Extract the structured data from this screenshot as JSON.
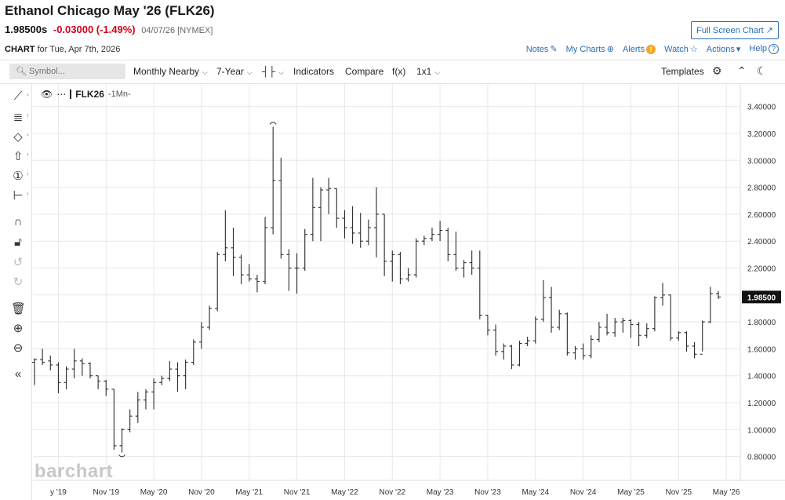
{
  "header": {
    "title": "Ethanol Chicago May '26 (FLK26)",
    "last": "1.98500s",
    "change": "-0.03000 (-1.49%)",
    "meta": "04/07/26 [NYMEX]",
    "fullscreen_label": "Full Screen Chart ↗",
    "chart_label": "CHART",
    "chart_date": "for Tue, Apr 7th, 2026"
  },
  "links": {
    "notes": "Notes",
    "mycharts": "My Charts",
    "alerts": "Alerts",
    "watch": "Watch",
    "actions": "Actions",
    "help": "Help"
  },
  "toolbar": {
    "search_placeholder": "Symbol...",
    "period": "Monthly Nearby",
    "range": "7-Year",
    "indicators": "Indicators",
    "compare": "Compare",
    "fx": "f(x)",
    "layout": "1x1",
    "templates": "Templates"
  },
  "legend": {
    "symbol": "FLK26",
    "period": "-1Mn-"
  },
  "watermark": "barchart",
  "colors": {
    "bar": "#2b2b2b",
    "grid": "#e8e8e8",
    "accent": "#2a6db5",
    "down": "#d0021b",
    "alert": "#f5a623"
  },
  "chart_data": {
    "type": "ohlc",
    "title": "Ethanol Chicago May '26 (FLK26)",
    "y_axis_position": "right",
    "ylim": [
      0.7,
      3.5
    ],
    "y_ticks": [
      "3.40000",
      "3.20000",
      "3.00000",
      "2.80000",
      "2.60000",
      "2.40000",
      "2.20000",
      "2.00000",
      "1.80000",
      "1.60000",
      "1.40000",
      "1.20000",
      "1.00000",
      "0.80000"
    ],
    "x_tick_labels": [
      "y '19",
      "Nov '19",
      "May '20",
      "Nov '20",
      "May '21",
      "Nov '21",
      "May '22",
      "Nov '22",
      "May '23",
      "Nov '23",
      "May '24",
      "Nov '24",
      "May '25",
      "Nov '25",
      "May '26"
    ],
    "last_price_label": "1.98500",
    "last_price": 1.985,
    "bars": [
      {
        "open": 1.5,
        "high": 1.53,
        "low": 1.33,
        "close": 1.52
      },
      {
        "open": 1.52,
        "high": 1.6,
        "low": 1.48,
        "close": 1.5
      },
      {
        "open": 1.51,
        "high": 1.55,
        "low": 1.44,
        "close": 1.48
      },
      {
        "open": 1.48,
        "high": 1.5,
        "low": 1.27,
        "close": 1.35
      },
      {
        "open": 1.35,
        "high": 1.47,
        "low": 1.3,
        "close": 1.45
      },
      {
        "open": 1.45,
        "high": 1.6,
        "low": 1.38,
        "close": 1.51
      },
      {
        "open": 1.51,
        "high": 1.53,
        "low": 1.4,
        "close": 1.49
      },
      {
        "open": 1.49,
        "high": 1.5,
        "low": 1.38,
        "close": 1.4
      },
      {
        "open": 1.4,
        "high": 1.4,
        "low": 1.3,
        "close": 1.36
      },
      {
        "open": 1.36,
        "high": 1.37,
        "low": 1.25,
        "close": 1.3
      },
      {
        "open": 1.3,
        "high": 1.3,
        "low": 0.85,
        "close": 0.88
      },
      {
        "open": 0.88,
        "high": 1.01,
        "low": 0.83,
        "close": 1.0
      },
      {
        "open": 1.0,
        "high": 1.15,
        "low": 0.98,
        "close": 1.1
      },
      {
        "open": 1.1,
        "high": 1.28,
        "low": 1.05,
        "close": 1.22
      },
      {
        "open": 1.22,
        "high": 1.3,
        "low": 1.15,
        "close": 1.28
      },
      {
        "open": 1.28,
        "high": 1.38,
        "low": 1.15,
        "close": 1.35
      },
      {
        "open": 1.35,
        "high": 1.4,
        "low": 1.33,
        "close": 1.38
      },
      {
        "open": 1.38,
        "high": 1.51,
        "low": 1.36,
        "close": 1.45
      },
      {
        "open": 1.45,
        "high": 1.5,
        "low": 1.28,
        "close": 1.4
      },
      {
        "open": 1.4,
        "high": 1.52,
        "low": 1.3,
        "close": 1.5
      },
      {
        "open": 1.5,
        "high": 1.67,
        "low": 1.48,
        "close": 1.65
      },
      {
        "open": 1.65,
        "high": 1.8,
        "low": 1.6,
        "close": 1.76
      },
      {
        "open": 1.76,
        "high": 1.92,
        "low": 1.74,
        "close": 1.9
      },
      {
        "open": 1.9,
        "high": 2.32,
        "low": 1.88,
        "close": 2.3
      },
      {
        "open": 2.3,
        "high": 2.63,
        "low": 2.25,
        "close": 2.35
      },
      {
        "open": 2.35,
        "high": 2.5,
        "low": 2.14,
        "close": 2.28
      },
      {
        "open": 2.28,
        "high": 2.3,
        "low": 2.08,
        "close": 2.15
      },
      {
        "open": 2.15,
        "high": 2.23,
        "low": 2.1,
        "close": 2.12
      },
      {
        "open": 2.12,
        "high": 2.15,
        "low": 2.02,
        "close": 2.1
      },
      {
        "open": 2.1,
        "high": 2.58,
        "low": 2.08,
        "close": 2.5
      },
      {
        "open": 2.5,
        "high": 3.25,
        "low": 2.45,
        "close": 2.85
      },
      {
        "open": 2.85,
        "high": 3.02,
        "low": 2.27,
        "close": 2.3
      },
      {
        "open": 2.3,
        "high": 2.34,
        "low": 2.03,
        "close": 2.2
      },
      {
        "open": 2.2,
        "high": 2.31,
        "low": 2.01,
        "close": 2.2
      },
      {
        "open": 2.2,
        "high": 2.49,
        "low": 2.18,
        "close": 2.45
      },
      {
        "open": 2.45,
        "high": 2.87,
        "low": 2.4,
        "close": 2.65
      },
      {
        "open": 2.65,
        "high": 2.8,
        "low": 2.4,
        "close": 2.78
      },
      {
        "open": 2.78,
        "high": 2.87,
        "low": 2.6,
        "close": 2.79
      },
      {
        "open": 2.79,
        "high": 2.79,
        "low": 2.5,
        "close": 2.57
      },
      {
        "open": 2.57,
        "high": 2.63,
        "low": 2.42,
        "close": 2.5
      },
      {
        "open": 2.5,
        "high": 2.66,
        "low": 2.38,
        "close": 2.46
      },
      {
        "open": 2.46,
        "high": 2.61,
        "low": 2.35,
        "close": 2.4
      },
      {
        "open": 2.4,
        "high": 2.56,
        "low": 2.37,
        "close": 2.5
      },
      {
        "open": 2.5,
        "high": 2.8,
        "low": 2.28,
        "close": 2.6
      },
      {
        "open": 2.6,
        "high": 2.6,
        "low": 2.14,
        "close": 2.25
      },
      {
        "open": 2.25,
        "high": 2.33,
        "low": 2.1,
        "close": 2.3
      },
      {
        "open": 2.3,
        "high": 2.32,
        "low": 2.08,
        "close": 2.12
      },
      {
        "open": 2.12,
        "high": 2.2,
        "low": 2.1,
        "close": 2.15
      },
      {
        "open": 2.15,
        "high": 2.42,
        "low": 2.13,
        "close": 2.4
      },
      {
        "open": 2.4,
        "high": 2.44,
        "low": 2.37,
        "close": 2.42
      },
      {
        "open": 2.42,
        "high": 2.5,
        "low": 2.4,
        "close": 2.45
      },
      {
        "open": 2.45,
        "high": 2.55,
        "low": 2.4,
        "close": 2.48
      },
      {
        "open": 2.48,
        "high": 2.5,
        "low": 2.25,
        "close": 2.3
      },
      {
        "open": 2.3,
        "high": 2.47,
        "low": 2.18,
        "close": 2.2
      },
      {
        "open": 2.2,
        "high": 2.26,
        "low": 2.13,
        "close": 2.24
      },
      {
        "open": 2.24,
        "high": 2.33,
        "low": 2.15,
        "close": 2.2
      },
      {
        "open": 2.2,
        "high": 2.33,
        "low": 1.82,
        "close": 1.85
      },
      {
        "open": 1.85,
        "high": 1.85,
        "low": 1.7,
        "close": 1.74
      },
      {
        "open": 1.74,
        "high": 1.78,
        "low": 1.55,
        "close": 1.58
      },
      {
        "open": 1.58,
        "high": 1.64,
        "low": 1.52,
        "close": 1.62
      },
      {
        "open": 1.62,
        "high": 1.63,
        "low": 1.45,
        "close": 1.48
      },
      {
        "open": 1.48,
        "high": 1.66,
        "low": 1.47,
        "close": 1.64
      },
      {
        "open": 1.64,
        "high": 1.69,
        "low": 1.62,
        "close": 1.66
      },
      {
        "open": 1.66,
        "high": 1.84,
        "low": 1.64,
        "close": 1.82
      },
      {
        "open": 1.82,
        "high": 2.11,
        "low": 1.8,
        "close": 1.98
      },
      {
        "open": 1.98,
        "high": 2.06,
        "low": 1.72,
        "close": 1.76
      },
      {
        "open": 1.76,
        "high": 1.89,
        "low": 1.74,
        "close": 1.86
      },
      {
        "open": 1.86,
        "high": 1.87,
        "low": 1.55,
        "close": 1.57
      },
      {
        "open": 1.57,
        "high": 1.62,
        "low": 1.52,
        "close": 1.6
      },
      {
        "open": 1.6,
        "high": 1.64,
        "low": 1.52,
        "close": 1.55
      },
      {
        "open": 1.55,
        "high": 1.7,
        "low": 1.53,
        "close": 1.67
      },
      {
        "open": 1.67,
        "high": 1.8,
        "low": 1.65,
        "close": 1.76
      },
      {
        "open": 1.76,
        "high": 1.86,
        "low": 1.7,
        "close": 1.72
      },
      {
        "open": 1.72,
        "high": 1.83,
        "low": 1.69,
        "close": 1.8
      },
      {
        "open": 1.8,
        "high": 1.83,
        "low": 1.72,
        "close": 1.81
      },
      {
        "open": 1.81,
        "high": 1.82,
        "low": 1.68,
        "close": 1.78
      },
      {
        "open": 1.78,
        "high": 1.8,
        "low": 1.62,
        "close": 1.7
      },
      {
        "open": 1.7,
        "high": 1.79,
        "low": 1.68,
        "close": 1.75
      },
      {
        "open": 1.75,
        "high": 1.99,
        "low": 1.73,
        "close": 1.98
      },
      {
        "open": 1.98,
        "high": 2.09,
        "low": 1.92,
        "close": 2.0
      },
      {
        "open": 2.0,
        "high": 2.0,
        "low": 1.66,
        "close": 1.68
      },
      {
        "open": 1.68,
        "high": 1.73,
        "low": 1.66,
        "close": 1.72
      },
      {
        "open": 1.72,
        "high": 1.73,
        "low": 1.58,
        "close": 1.62
      },
      {
        "open": 1.62,
        "high": 1.65,
        "low": 1.53,
        "close": 1.56
      },
      {
        "open": 1.56,
        "high": 1.81,
        "low": 1.58,
        "close": 1.8
      },
      {
        "open": 1.8,
        "high": 2.06,
        "low": 1.79,
        "close": 2.01
      },
      {
        "open": 2.01,
        "high": 2.03,
        "low": 1.97,
        "close": 1.985
      }
    ]
  }
}
